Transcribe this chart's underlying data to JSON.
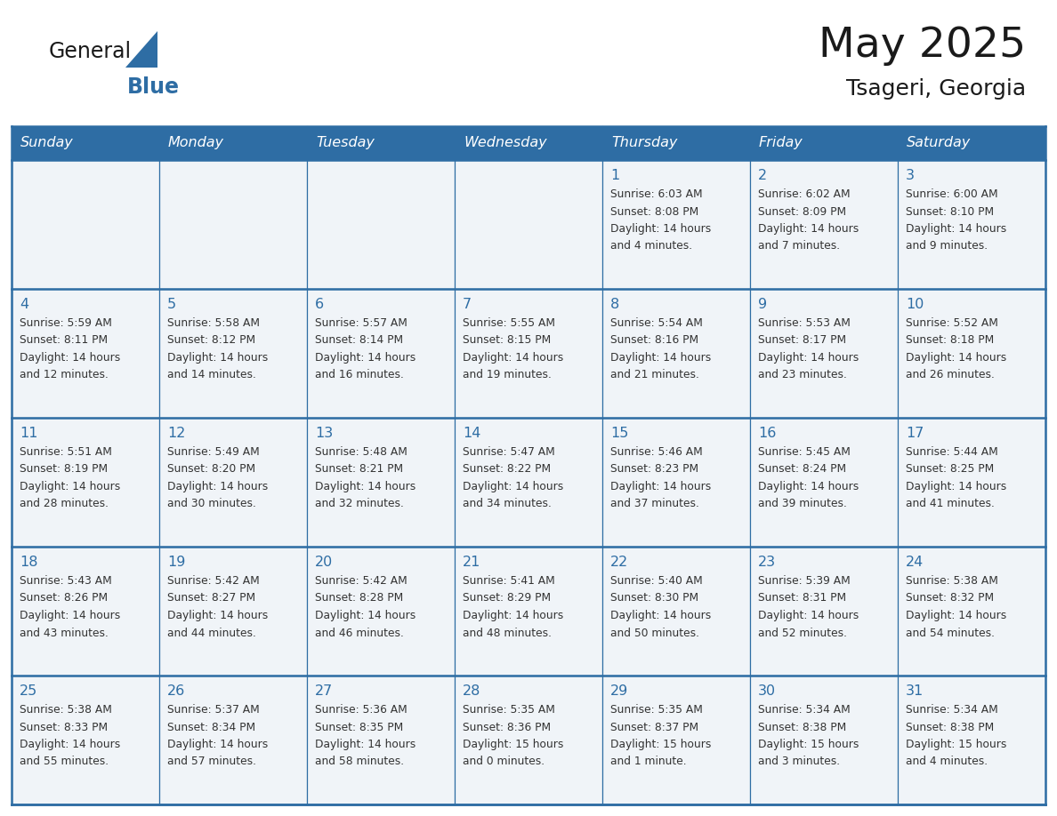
{
  "title": "May 2025",
  "subtitle": "Tsageri, Georgia",
  "days_of_week": [
    "Sunday",
    "Monday",
    "Tuesday",
    "Wednesday",
    "Thursday",
    "Friday",
    "Saturday"
  ],
  "header_bg": "#2E6DA4",
  "header_text": "#FFFFFF",
  "cell_bg": "#F0F4F8",
  "border_color": "#2E6DA4",
  "day_num_color": "#2E6DA4",
  "text_color": "#333333",
  "logo_general_color": "#1a1a1a",
  "logo_blue_color": "#2E6DA4",
  "calendar_data": [
    [
      {
        "day": null,
        "sunrise": null,
        "sunset": null,
        "daylight_line1": null,
        "daylight_line2": null
      },
      {
        "day": null,
        "sunrise": null,
        "sunset": null,
        "daylight_line1": null,
        "daylight_line2": null
      },
      {
        "day": null,
        "sunrise": null,
        "sunset": null,
        "daylight_line1": null,
        "daylight_line2": null
      },
      {
        "day": null,
        "sunrise": null,
        "sunset": null,
        "daylight_line1": null,
        "daylight_line2": null
      },
      {
        "day": 1,
        "sunrise": "Sunrise: 6:03 AM",
        "sunset": "Sunset: 8:08 PM",
        "daylight_line1": "Daylight: 14 hours",
        "daylight_line2": "and 4 minutes."
      },
      {
        "day": 2,
        "sunrise": "Sunrise: 6:02 AM",
        "sunset": "Sunset: 8:09 PM",
        "daylight_line1": "Daylight: 14 hours",
        "daylight_line2": "and 7 minutes."
      },
      {
        "day": 3,
        "sunrise": "Sunrise: 6:00 AM",
        "sunset": "Sunset: 8:10 PM",
        "daylight_line1": "Daylight: 14 hours",
        "daylight_line2": "and 9 minutes."
      }
    ],
    [
      {
        "day": 4,
        "sunrise": "Sunrise: 5:59 AM",
        "sunset": "Sunset: 8:11 PM",
        "daylight_line1": "Daylight: 14 hours",
        "daylight_line2": "and 12 minutes."
      },
      {
        "day": 5,
        "sunrise": "Sunrise: 5:58 AM",
        "sunset": "Sunset: 8:12 PM",
        "daylight_line1": "Daylight: 14 hours",
        "daylight_line2": "and 14 minutes."
      },
      {
        "day": 6,
        "sunrise": "Sunrise: 5:57 AM",
        "sunset": "Sunset: 8:14 PM",
        "daylight_line1": "Daylight: 14 hours",
        "daylight_line2": "and 16 minutes."
      },
      {
        "day": 7,
        "sunrise": "Sunrise: 5:55 AM",
        "sunset": "Sunset: 8:15 PM",
        "daylight_line1": "Daylight: 14 hours",
        "daylight_line2": "and 19 minutes."
      },
      {
        "day": 8,
        "sunrise": "Sunrise: 5:54 AM",
        "sunset": "Sunset: 8:16 PM",
        "daylight_line1": "Daylight: 14 hours",
        "daylight_line2": "and 21 minutes."
      },
      {
        "day": 9,
        "sunrise": "Sunrise: 5:53 AM",
        "sunset": "Sunset: 8:17 PM",
        "daylight_line1": "Daylight: 14 hours",
        "daylight_line2": "and 23 minutes."
      },
      {
        "day": 10,
        "sunrise": "Sunrise: 5:52 AM",
        "sunset": "Sunset: 8:18 PM",
        "daylight_line1": "Daylight: 14 hours",
        "daylight_line2": "and 26 minutes."
      }
    ],
    [
      {
        "day": 11,
        "sunrise": "Sunrise: 5:51 AM",
        "sunset": "Sunset: 8:19 PM",
        "daylight_line1": "Daylight: 14 hours",
        "daylight_line2": "and 28 minutes."
      },
      {
        "day": 12,
        "sunrise": "Sunrise: 5:49 AM",
        "sunset": "Sunset: 8:20 PM",
        "daylight_line1": "Daylight: 14 hours",
        "daylight_line2": "and 30 minutes."
      },
      {
        "day": 13,
        "sunrise": "Sunrise: 5:48 AM",
        "sunset": "Sunset: 8:21 PM",
        "daylight_line1": "Daylight: 14 hours",
        "daylight_line2": "and 32 minutes."
      },
      {
        "day": 14,
        "sunrise": "Sunrise: 5:47 AM",
        "sunset": "Sunset: 8:22 PM",
        "daylight_line1": "Daylight: 14 hours",
        "daylight_line2": "and 34 minutes."
      },
      {
        "day": 15,
        "sunrise": "Sunrise: 5:46 AM",
        "sunset": "Sunset: 8:23 PM",
        "daylight_line1": "Daylight: 14 hours",
        "daylight_line2": "and 37 minutes."
      },
      {
        "day": 16,
        "sunrise": "Sunrise: 5:45 AM",
        "sunset": "Sunset: 8:24 PM",
        "daylight_line1": "Daylight: 14 hours",
        "daylight_line2": "and 39 minutes."
      },
      {
        "day": 17,
        "sunrise": "Sunrise: 5:44 AM",
        "sunset": "Sunset: 8:25 PM",
        "daylight_line1": "Daylight: 14 hours",
        "daylight_line2": "and 41 minutes."
      }
    ],
    [
      {
        "day": 18,
        "sunrise": "Sunrise: 5:43 AM",
        "sunset": "Sunset: 8:26 PM",
        "daylight_line1": "Daylight: 14 hours",
        "daylight_line2": "and 43 minutes."
      },
      {
        "day": 19,
        "sunrise": "Sunrise: 5:42 AM",
        "sunset": "Sunset: 8:27 PM",
        "daylight_line1": "Daylight: 14 hours",
        "daylight_line2": "and 44 minutes."
      },
      {
        "day": 20,
        "sunrise": "Sunrise: 5:42 AM",
        "sunset": "Sunset: 8:28 PM",
        "daylight_line1": "Daylight: 14 hours",
        "daylight_line2": "and 46 minutes."
      },
      {
        "day": 21,
        "sunrise": "Sunrise: 5:41 AM",
        "sunset": "Sunset: 8:29 PM",
        "daylight_line1": "Daylight: 14 hours",
        "daylight_line2": "and 48 minutes."
      },
      {
        "day": 22,
        "sunrise": "Sunrise: 5:40 AM",
        "sunset": "Sunset: 8:30 PM",
        "daylight_line1": "Daylight: 14 hours",
        "daylight_line2": "and 50 minutes."
      },
      {
        "day": 23,
        "sunrise": "Sunrise: 5:39 AM",
        "sunset": "Sunset: 8:31 PM",
        "daylight_line1": "Daylight: 14 hours",
        "daylight_line2": "and 52 minutes."
      },
      {
        "day": 24,
        "sunrise": "Sunrise: 5:38 AM",
        "sunset": "Sunset: 8:32 PM",
        "daylight_line1": "Daylight: 14 hours",
        "daylight_line2": "and 54 minutes."
      }
    ],
    [
      {
        "day": 25,
        "sunrise": "Sunrise: 5:38 AM",
        "sunset": "Sunset: 8:33 PM",
        "daylight_line1": "Daylight: 14 hours",
        "daylight_line2": "and 55 minutes."
      },
      {
        "day": 26,
        "sunrise": "Sunrise: 5:37 AM",
        "sunset": "Sunset: 8:34 PM",
        "daylight_line1": "Daylight: 14 hours",
        "daylight_line2": "and 57 minutes."
      },
      {
        "day": 27,
        "sunrise": "Sunrise: 5:36 AM",
        "sunset": "Sunset: 8:35 PM",
        "daylight_line1": "Daylight: 14 hours",
        "daylight_line2": "and 58 minutes."
      },
      {
        "day": 28,
        "sunrise": "Sunrise: 5:35 AM",
        "sunset": "Sunset: 8:36 PM",
        "daylight_line1": "Daylight: 15 hours",
        "daylight_line2": "and 0 minutes."
      },
      {
        "day": 29,
        "sunrise": "Sunrise: 5:35 AM",
        "sunset": "Sunset: 8:37 PM",
        "daylight_line1": "Daylight: 15 hours",
        "daylight_line2": "and 1 minute."
      },
      {
        "day": 30,
        "sunrise": "Sunrise: 5:34 AM",
        "sunset": "Sunset: 8:38 PM",
        "daylight_line1": "Daylight: 15 hours",
        "daylight_line2": "and 3 minutes."
      },
      {
        "day": 31,
        "sunrise": "Sunrise: 5:34 AM",
        "sunset": "Sunset: 8:38 PM",
        "daylight_line1": "Daylight: 15 hours",
        "daylight_line2": "and 4 minutes."
      }
    ]
  ]
}
